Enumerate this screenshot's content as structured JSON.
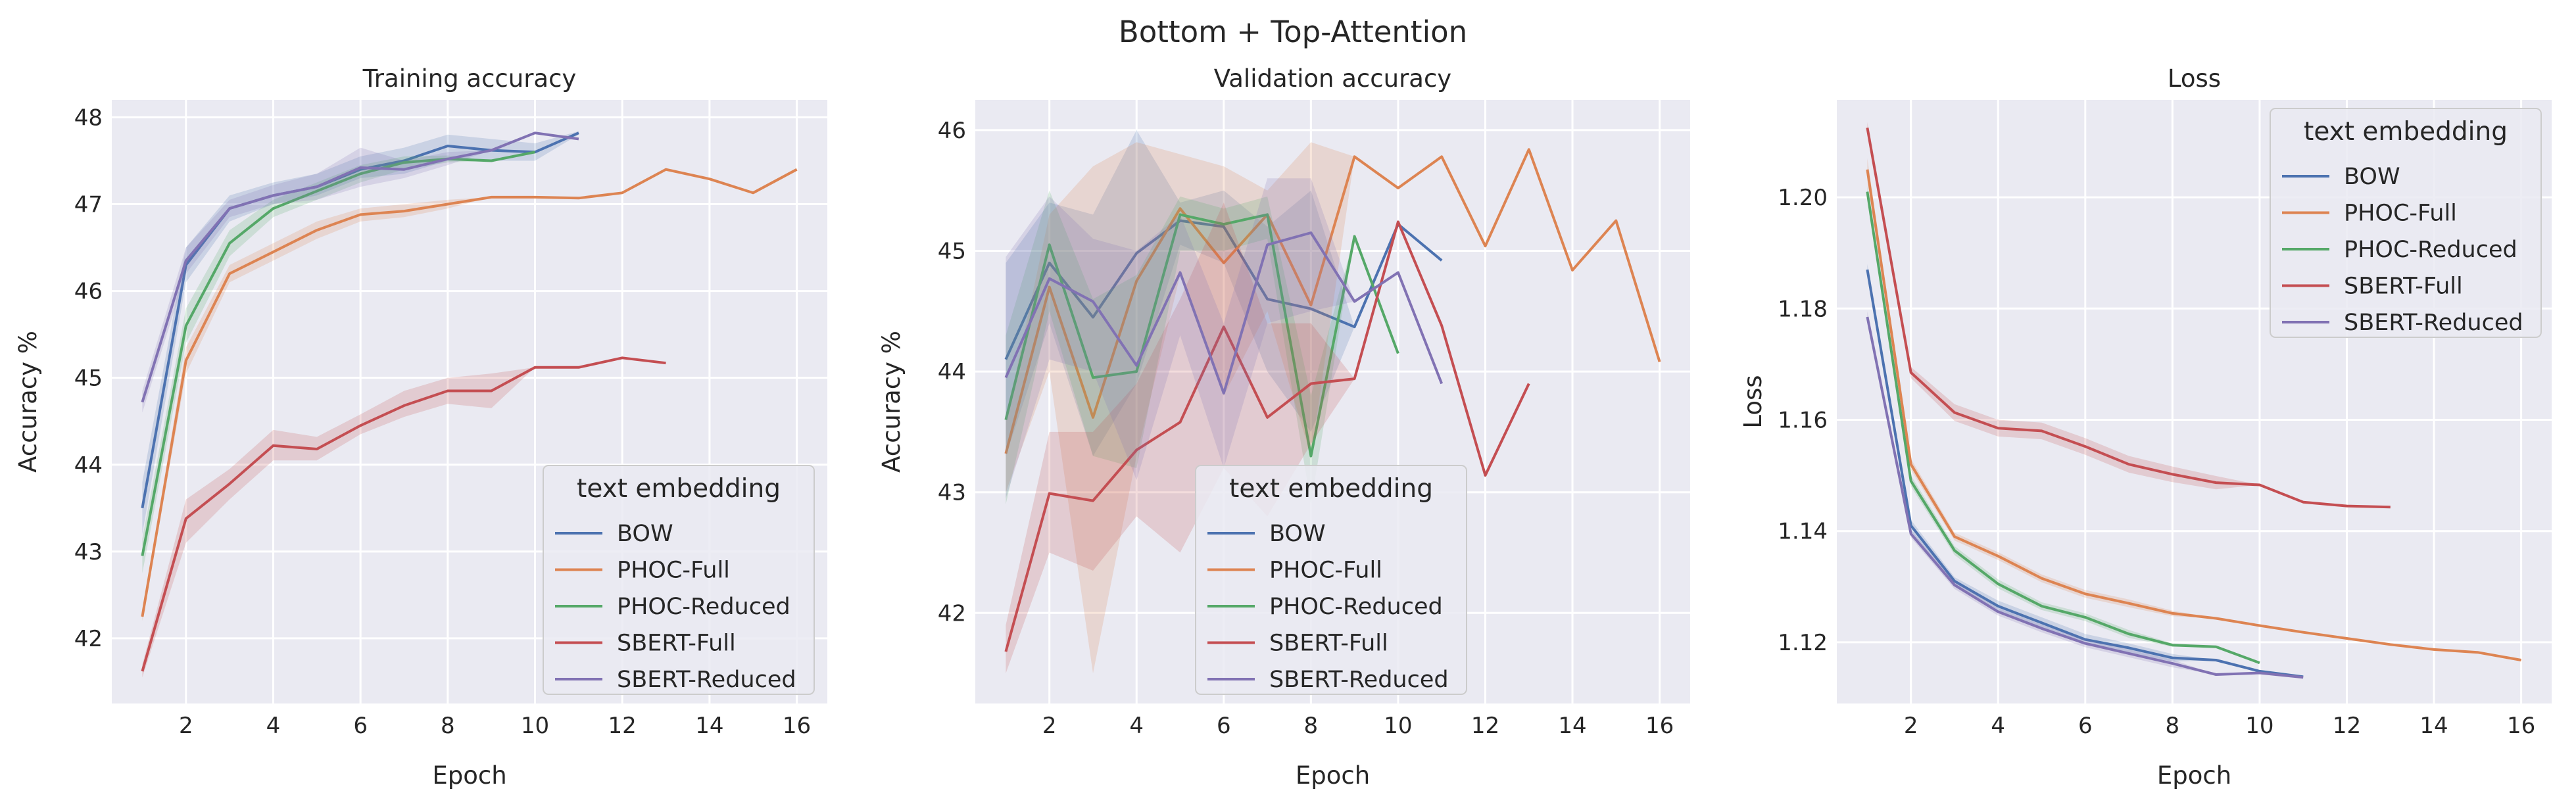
{
  "figure": {
    "suptitle": "Bottom + Top-Attention"
  },
  "legend": {
    "title": "text embedding"
  },
  "colors": {
    "BOW": "#4c72b0",
    "PHOC-Full": "#dd8452",
    "PHOC-Reduced": "#55a868",
    "SBERT-Full": "#c44e52",
    "SBERT-Reduced": "#8172b3",
    "axes_bg": "#eaeaf2",
    "grid": "#ffffff"
  },
  "chart_data": [
    {
      "type": "line",
      "title": "Training accuracy",
      "xlabel": "Epoch",
      "ylabel": "Accuracy %",
      "xlim": [
        0.3,
        16.7
      ],
      "ylim": [
        41.25,
        48.2
      ],
      "xticks": [
        2,
        4,
        6,
        8,
        10,
        12,
        14,
        16
      ],
      "yticks": [
        42,
        43,
        44,
        45,
        46,
        47,
        48
      ],
      "grid": true,
      "legend_position": "lower-right",
      "series": [
        {
          "name": "BOW",
          "x": [
            1,
            2,
            3,
            4,
            5,
            6,
            7,
            8,
            9,
            10,
            11
          ],
          "y": [
            43.5,
            46.3,
            46.95,
            47.1,
            47.2,
            47.4,
            47.5,
            47.67,
            47.62,
            47.6,
            47.82
          ],
          "lo": [
            43.2,
            46.1,
            46.8,
            47.0,
            47.1,
            47.3,
            47.35,
            47.5,
            47.5,
            47.5,
            47.8
          ],
          "hi": [
            43.8,
            46.5,
            47.1,
            47.25,
            47.35,
            47.55,
            47.65,
            47.8,
            47.75,
            47.7,
            47.84
          ]
        },
        {
          "name": "PHOC-Full",
          "x": [
            1,
            2,
            3,
            4,
            5,
            6,
            7,
            8,
            9,
            10,
            11,
            12,
            13,
            14,
            15,
            16
          ],
          "y": [
            42.25,
            45.2,
            46.2,
            46.45,
            46.7,
            46.88,
            46.92,
            47.0,
            47.08,
            47.08,
            47.07,
            47.13,
            47.4,
            47.29,
            47.13,
            47.4
          ],
          "lo": [
            42.2,
            45.05,
            46.1,
            46.35,
            46.6,
            46.8,
            46.85,
            46.95,
            47.08,
            47.08,
            47.07,
            47.13,
            47.4,
            47.29,
            47.13,
            47.4
          ],
          "hi": [
            42.3,
            45.35,
            46.3,
            46.55,
            46.8,
            46.95,
            47.0,
            47.05,
            47.08,
            47.08,
            47.07,
            47.13,
            47.4,
            47.29,
            47.13,
            47.4
          ]
        },
        {
          "name": "PHOC-Reduced",
          "x": [
            1,
            2,
            3,
            4,
            5,
            6,
            7,
            8,
            9,
            10
          ],
          "y": [
            42.95,
            45.6,
            46.55,
            46.95,
            47.15,
            47.35,
            47.48,
            47.52,
            47.5,
            47.6
          ],
          "lo": [
            42.75,
            45.4,
            46.4,
            46.85,
            47.05,
            47.25,
            47.4,
            47.48,
            47.5,
            47.6
          ],
          "hi": [
            43.15,
            45.8,
            46.7,
            47.05,
            47.25,
            47.45,
            47.55,
            47.56,
            47.5,
            47.6
          ]
        },
        {
          "name": "SBERT-Full",
          "x": [
            1,
            2,
            3,
            4,
            5,
            6,
            7,
            8,
            9,
            10,
            11,
            12,
            13
          ],
          "y": [
            41.62,
            43.38,
            43.78,
            44.22,
            44.18,
            44.45,
            44.68,
            44.85,
            44.85,
            45.12,
            45.12,
            45.23,
            45.17
          ],
          "lo": [
            41.55,
            43.1,
            43.6,
            44.05,
            44.05,
            44.35,
            44.55,
            44.7,
            44.65,
            45.12,
            45.12,
            45.23,
            45.17
          ],
          "hi": [
            41.7,
            43.6,
            43.95,
            44.4,
            44.32,
            44.58,
            44.85,
            45.0,
            45.05,
            45.12,
            45.12,
            45.23,
            45.17
          ]
        },
        {
          "name": "SBERT-Reduced",
          "x": [
            1,
            2,
            3,
            4,
            5,
            6,
            7,
            8,
            9,
            10,
            11
          ],
          "y": [
            44.72,
            46.35,
            46.95,
            47.1,
            47.2,
            47.42,
            47.4,
            47.52,
            47.62,
            47.82,
            47.75
          ],
          "lo": [
            44.6,
            46.2,
            46.85,
            47.0,
            47.05,
            47.2,
            47.3,
            47.45,
            47.62,
            47.82,
            47.75
          ],
          "hi": [
            44.85,
            46.5,
            47.05,
            47.22,
            47.35,
            47.65,
            47.5,
            47.6,
            47.62,
            47.82,
            47.75
          ]
        }
      ]
    },
    {
      "type": "line",
      "title": "Validation accuracy",
      "xlabel": "Epoch",
      "ylabel": "Accuracy %",
      "xlim": [
        0.3,
        16.7
      ],
      "ylim": [
        41.25,
        46.25
      ],
      "xticks": [
        2,
        4,
        6,
        8,
        10,
        12,
        14,
        16
      ],
      "yticks": [
        42,
        43,
        44,
        45,
        46
      ],
      "grid": true,
      "legend_position": "lower-center",
      "series": [
        {
          "name": "BOW",
          "x": [
            1,
            2,
            3,
            4,
            5,
            6,
            7,
            8,
            9,
            10,
            11
          ],
          "y": [
            44.1,
            44.9,
            44.45,
            44.98,
            45.25,
            45.2,
            44.6,
            44.52,
            44.37,
            45.22,
            44.92
          ],
          "lo": [
            43.3,
            44.4,
            43.3,
            43.9,
            45.05,
            44.9,
            44.0,
            43.5,
            44.37,
            45.22,
            44.92
          ],
          "hi": [
            44.9,
            45.4,
            45.3,
            46.0,
            45.4,
            45.5,
            45.2,
            45.5,
            44.37,
            45.22,
            44.92
          ]
        },
        {
          "name": "PHOC-Full",
          "x": [
            1,
            2,
            3,
            4,
            5,
            6,
            7,
            8,
            9,
            10,
            11,
            12,
            13,
            14,
            15,
            16
          ],
          "y": [
            43.32,
            44.7,
            43.62,
            44.75,
            45.35,
            44.9,
            45.3,
            44.55,
            45.78,
            45.52,
            45.78,
            45.04,
            45.84,
            44.84,
            45.25,
            44.08
          ],
          "lo": [
            43.0,
            44.0,
            41.5,
            43.3,
            44.8,
            43.8,
            44.5,
            43.3,
            45.78,
            45.52,
            45.78,
            45.04,
            45.84,
            44.84,
            45.25,
            44.08
          ],
          "hi": [
            43.6,
            45.3,
            45.7,
            45.9,
            45.8,
            45.7,
            45.5,
            45.9,
            45.78,
            45.52,
            45.78,
            45.04,
            45.84,
            44.84,
            45.25,
            44.08
          ]
        },
        {
          "name": "PHOC-Reduced",
          "x": [
            1,
            2,
            3,
            4,
            5,
            6,
            7,
            8,
            9,
            10
          ],
          "y": [
            43.6,
            45.05,
            43.95,
            44.0,
            45.3,
            45.22,
            45.3,
            43.3,
            45.12,
            44.15
          ],
          "lo": [
            42.9,
            44.5,
            43.3,
            43.2,
            45.0,
            45.0,
            45.1,
            42.9,
            45.12,
            44.15
          ],
          "hi": [
            44.3,
            45.5,
            44.6,
            44.8,
            45.45,
            45.35,
            45.45,
            43.8,
            45.12,
            44.15
          ]
        },
        {
          "name": "SBERT-Full",
          "x": [
            1,
            2,
            3,
            4,
            5,
            6,
            7,
            8,
            9,
            10,
            11,
            12,
            13
          ],
          "y": [
            41.68,
            42.99,
            42.93,
            43.35,
            43.58,
            44.37,
            43.62,
            43.9,
            43.94,
            45.24,
            44.38,
            43.14,
            43.9
          ],
          "lo": [
            41.5,
            42.5,
            42.35,
            42.8,
            42.5,
            43.2,
            42.8,
            43.4,
            43.94,
            45.24,
            44.38,
            43.14,
            43.9
          ],
          "hi": [
            41.9,
            43.5,
            43.5,
            43.9,
            44.6,
            45.4,
            44.4,
            44.4,
            43.94,
            45.24,
            44.38,
            43.14,
            43.9
          ]
        },
        {
          "name": "SBERT-Reduced",
          "x": [
            1,
            2,
            3,
            4,
            5,
            6,
            7,
            8,
            9,
            10,
            11
          ],
          "y": [
            43.95,
            44.77,
            44.58,
            44.05,
            44.82,
            43.82,
            45.05,
            45.15,
            44.58,
            44.82,
            43.9
          ],
          "lo": [
            42.95,
            44.1,
            44.0,
            43.1,
            44.3,
            43.2,
            44.4,
            44.5,
            44.58,
            44.82,
            43.9
          ],
          "hi": [
            44.95,
            45.45,
            45.1,
            45.0,
            45.3,
            44.4,
            45.6,
            45.6,
            44.58,
            44.82,
            43.9
          ]
        }
      ]
    },
    {
      "type": "line",
      "title": "Loss",
      "xlabel": "Epoch",
      "ylabel": "Loss",
      "xlim": [
        0.3,
        16.7
      ],
      "ylim": [
        1.109,
        1.2175
      ],
      "xticks": [
        2,
        4,
        6,
        8,
        10,
        12,
        14,
        16
      ],
      "yticks": [
        1.12,
        1.14,
        1.16,
        1.18,
        1.2
      ],
      "ytick_labels": [
        "1.12",
        "1.14",
        "1.16",
        "1.18",
        "1.20"
      ],
      "grid": true,
      "legend_position": "upper-right",
      "series": [
        {
          "name": "BOW",
          "x": [
            1,
            2,
            3,
            4,
            5,
            6,
            7,
            8,
            9,
            10,
            11
          ],
          "y": [
            1.187,
            1.141,
            1.131,
            1.1265,
            1.1235,
            1.1205,
            1.119,
            1.1172,
            1.1168,
            1.1148,
            1.1138
          ],
          "lo": [
            1.186,
            1.14,
            1.1303,
            1.1255,
            1.1225,
            1.1195,
            1.1182,
            1.1165,
            1.1168,
            1.1148,
            1.1138
          ],
          "hi": [
            1.188,
            1.142,
            1.1317,
            1.1275,
            1.1245,
            1.1215,
            1.1198,
            1.1179,
            1.1168,
            1.1148,
            1.1138
          ]
        },
        {
          "name": "PHOC-Full",
          "x": [
            1,
            2,
            3,
            4,
            5,
            6,
            7,
            8,
            9,
            10,
            11,
            12,
            13,
            14,
            15,
            16
          ],
          "y": [
            1.205,
            1.152,
            1.139,
            1.1355,
            1.1315,
            1.1287,
            1.127,
            1.1252,
            1.1243,
            1.123,
            1.1218,
            1.1207,
            1.1196,
            1.1187,
            1.1182,
            1.1168
          ],
          "lo": [
            1.203,
            1.151,
            1.1383,
            1.1348,
            1.1308,
            1.128,
            1.1263,
            1.1247,
            1.1243,
            1.123,
            1.1218,
            1.1207,
            1.1196,
            1.1187,
            1.1182,
            1.1168
          ],
          "hi": [
            1.207,
            1.153,
            1.1397,
            1.1362,
            1.1322,
            1.1294,
            1.1277,
            1.1257,
            1.1243,
            1.123,
            1.1218,
            1.1207,
            1.1196,
            1.1187,
            1.1182,
            1.1168
          ]
        },
        {
          "name": "PHOC-Reduced",
          "x": [
            1,
            2,
            3,
            4,
            5,
            6,
            7,
            8,
            9,
            10
          ],
          "y": [
            1.201,
            1.149,
            1.1365,
            1.1305,
            1.1265,
            1.1245,
            1.1215,
            1.1195,
            1.1192,
            1.1163
          ],
          "lo": [
            1.2,
            1.148,
            1.1357,
            1.1297,
            1.1258,
            1.1238,
            1.1208,
            1.1192,
            1.1192,
            1.1163
          ],
          "hi": [
            1.202,
            1.15,
            1.1373,
            1.1313,
            1.1272,
            1.1252,
            1.1222,
            1.1198,
            1.1192,
            1.1163
          ]
        },
        {
          "name": "SBERT-Full",
          "x": [
            1,
            2,
            3,
            4,
            5,
            6,
            7,
            8,
            9,
            10,
            11,
            12,
            13
          ],
          "y": [
            1.2125,
            1.1685,
            1.1613,
            1.1585,
            1.158,
            1.1552,
            1.152,
            1.1502,
            1.1487,
            1.1483,
            1.1452,
            1.1445,
            1.1443
          ],
          "lo": [
            1.2115,
            1.1675,
            1.1598,
            1.157,
            1.1565,
            1.1537,
            1.1505,
            1.1488,
            1.1475,
            1.1483,
            1.1452,
            1.1445,
            1.1443
          ],
          "hi": [
            1.2135,
            1.1695,
            1.1628,
            1.16,
            1.1595,
            1.1567,
            1.1535,
            1.1516,
            1.1499,
            1.1483,
            1.1452,
            1.1445,
            1.1443
          ]
        },
        {
          "name": "SBERT-Reduced",
          "x": [
            1,
            2,
            3,
            4,
            5,
            6,
            7,
            8,
            9,
            10,
            11
          ],
          "y": [
            1.1785,
            1.1395,
            1.1303,
            1.1255,
            1.1225,
            1.1198,
            1.118,
            1.1162,
            1.1142,
            1.1145,
            1.1137
          ],
          "lo": [
            1.1775,
            1.1388,
            1.1296,
            1.1248,
            1.1218,
            1.1191,
            1.1173,
            1.1155,
            1.1142,
            1.1145,
            1.1137
          ],
          "hi": [
            1.1795,
            1.1402,
            1.131,
            1.1262,
            1.1232,
            1.1205,
            1.1187,
            1.1169,
            1.1142,
            1.1145,
            1.1137
          ]
        }
      ]
    }
  ]
}
